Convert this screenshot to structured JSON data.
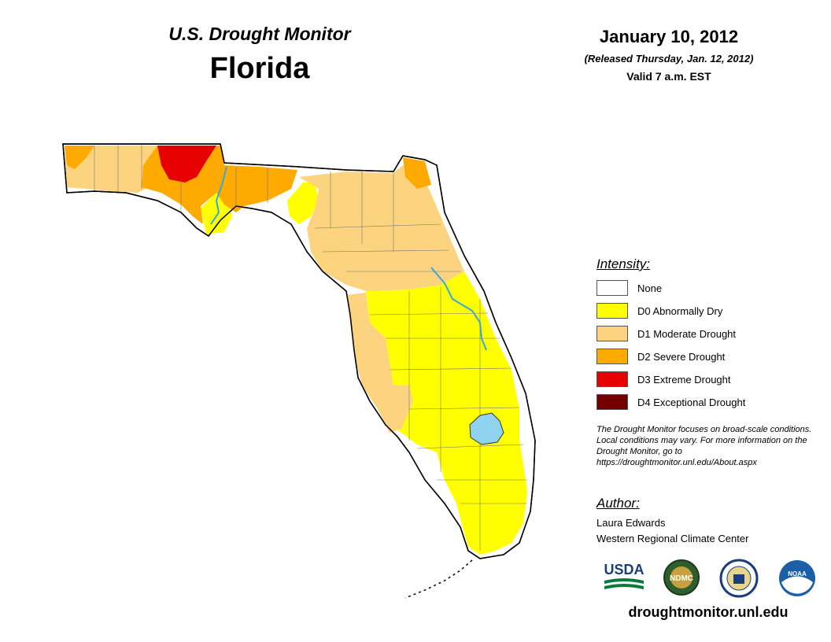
{
  "header": {
    "title": "U.S. Drought Monitor",
    "state": "Florida",
    "date": "January 10, 2012",
    "released": "(Released Thursday, Jan. 12, 2012)",
    "valid": "Valid 7 a.m. EST"
  },
  "legend": {
    "title": "Intensity:",
    "items": [
      {
        "label": "None",
        "color": "#ffffff"
      },
      {
        "label": "D0 Abnormally Dry",
        "color": "#ffff00"
      },
      {
        "label": "D1 Moderate Drought",
        "color": "#fcd37f"
      },
      {
        "label": "D2 Severe Drought",
        "color": "#ffaa00"
      },
      {
        "label": "D3 Extreme Drought",
        "color": "#e60000"
      },
      {
        "label": "D4 Exceptional Drought",
        "color": "#730000"
      }
    ]
  },
  "note": "The Drought Monitor focuses on broad-scale conditions. Local conditions may vary. For more information on the Drought Monitor, go to https://droughtmonitor.unl.edu/About.aspx",
  "author": {
    "title": "Author:",
    "name": "Laura Edwards",
    "organization": "Western Regional Climate Center"
  },
  "logos": {
    "usda": "USDA",
    "ndmc": "NDMC",
    "noaa": "NOAA"
  },
  "url": "droughtmonitor.unl.edu",
  "map_colors": {
    "none": "#ffffff",
    "d0": "#ffff00",
    "d1": "#fcd37f",
    "d2": "#ffaa00",
    "d3": "#e60000",
    "water": "#8fd3f0",
    "river": "#33aadd"
  }
}
